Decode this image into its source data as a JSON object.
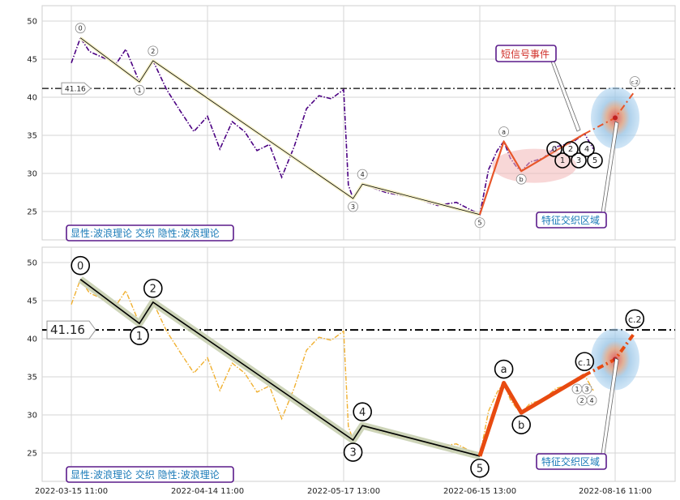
{
  "chart_data": {
    "type": "line",
    "x_ticks": [
      "2022-03-15 11:00",
      "2022-04-14 11:00",
      "2022-05-17 13:00",
      "2022-06-15 13:00",
      "2022-08-16 11:00"
    ],
    "y_ticks": [
      25,
      30,
      35,
      40,
      45,
      50
    ],
    "ylim": [
      21,
      52
    ],
    "grid": true,
    "ref_line": {
      "value": 41.16,
      "label": "41.16"
    },
    "panels": [
      {
        "id": "top",
        "price_color": "#4b0082",
        "price_style": "dashdot",
        "wave_color": "#000000",
        "wave_band_color": "#f5f0c8",
        "correction_color": "#e8562a",
        "box_text_left": "显性:波浪理论 交织 隐性:波浪理论",
        "box_signal": "短信号事件",
        "box_zone": "特征交织区域",
        "wave_points": [
          {
            "x": "2022-03-17",
            "y": 47.8,
            "label": "0"
          },
          {
            "x": "2022-03-30",
            "y": 42.0,
            "label": "1"
          },
          {
            "x": "2022-04-02",
            "y": 44.8,
            "label": "2"
          },
          {
            "x": "2022-05-19",
            "y": 26.7,
            "label": "3"
          },
          {
            "x": "2022-05-21",
            "y": 28.6,
            "label": "4"
          },
          {
            "x": "2022-06-15",
            "y": 24.6,
            "label": "5"
          }
        ],
        "correction_points": [
          {
            "x": "2022-06-15",
            "y": 24.6,
            "label": ""
          },
          {
            "x": "2022-06-26",
            "y": 34.2,
            "label": "a"
          },
          {
            "x": "2022-07-04",
            "y": 30.3,
            "label": "b"
          },
          {
            "x": "2022-08-02",
            "y": 35.2,
            "label": ""
          },
          {
            "x": "2022-08-16",
            "y": 37.3,
            "label": ""
          },
          {
            "x": "2022-08-25",
            "y": 40.8,
            "label": "c.2"
          }
        ],
        "sub_wave_labels": [
          "0",
          "1",
          "2",
          "3",
          "4",
          "5"
        ]
      },
      {
        "id": "bottom",
        "price_color": "#f0b030",
        "price_style": "dashdot",
        "wave_color": "#000000",
        "wave_band_color": "#c8cfb0",
        "correction_color": "#e84a10",
        "box_text_left": "显性:波浪理论 交织 隐性:波浪理论",
        "box_zone": "特征交织区域",
        "wave_points": [
          {
            "x": "2022-03-17",
            "y": 47.8,
            "label": "0"
          },
          {
            "x": "2022-03-30",
            "y": 42.0,
            "label": "1"
          },
          {
            "x": "2022-04-02",
            "y": 44.8,
            "label": "2"
          },
          {
            "x": "2022-05-19",
            "y": 26.7,
            "label": "3"
          },
          {
            "x": "2022-05-21",
            "y": 28.6,
            "label": "4"
          },
          {
            "x": "2022-06-15",
            "y": 24.6,
            "label": "5"
          }
        ],
        "correction_points": [
          {
            "x": "2022-06-15",
            "y": 24.6,
            "label": ""
          },
          {
            "x": "2022-06-26",
            "y": 34.2,
            "label": "a"
          },
          {
            "x": "2022-07-04",
            "y": 30.3,
            "label": "b"
          },
          {
            "x": "2022-08-02",
            "y": 35.2,
            "label": "c.1"
          },
          {
            "x": "2022-08-16",
            "y": 37.3,
            "label": ""
          },
          {
            "x": "2022-08-25",
            "y": 40.8,
            "label": "c.2"
          }
        ],
        "sub_wave_labels": [
          "1",
          "2",
          "3",
          "4"
        ]
      }
    ],
    "price_series": [
      {
        "x": "2022-03-15",
        "y": 44.5
      },
      {
        "x": "2022-03-17",
        "y": 47.8
      },
      {
        "x": "2022-03-19",
        "y": 46.0
      },
      {
        "x": "2022-03-22",
        "y": 45.2
      },
      {
        "x": "2022-03-25",
        "y": 44.5
      },
      {
        "x": "2022-03-27",
        "y": 46.3
      },
      {
        "x": "2022-03-30",
        "y": 42.0
      },
      {
        "x": "2022-04-02",
        "y": 44.8
      },
      {
        "x": "2022-04-05",
        "y": 41.0
      },
      {
        "x": "2022-04-08",
        "y": 38.2
      },
      {
        "x": "2022-04-11",
        "y": 35.5
      },
      {
        "x": "2022-04-14",
        "y": 37.5
      },
      {
        "x": "2022-04-17",
        "y": 33.2
      },
      {
        "x": "2022-04-20",
        "y": 36.8
      },
      {
        "x": "2022-04-23",
        "y": 35.5
      },
      {
        "x": "2022-04-26",
        "y": 33.0
      },
      {
        "x": "2022-04-29",
        "y": 33.8
      },
      {
        "x": "2022-05-02",
        "y": 29.5
      },
      {
        "x": "2022-05-05",
        "y": 33.5
      },
      {
        "x": "2022-05-08",
        "y": 38.5
      },
      {
        "x": "2022-05-11",
        "y": 40.2
      },
      {
        "x": "2022-05-14",
        "y": 39.8
      },
      {
        "x": "2022-05-17",
        "y": 41.0
      },
      {
        "x": "2022-05-18",
        "y": 28.5
      },
      {
        "x": "2022-05-19",
        "y": 26.7
      },
      {
        "x": "2022-05-21",
        "y": 28.6
      },
      {
        "x": "2022-05-26",
        "y": 27.5
      },
      {
        "x": "2022-06-01",
        "y": 26.8
      },
      {
        "x": "2022-06-06",
        "y": 25.8
      },
      {
        "x": "2022-06-10",
        "y": 26.2
      },
      {
        "x": "2022-06-15",
        "y": 24.6
      },
      {
        "x": "2022-06-19",
        "y": 30.5
      },
      {
        "x": "2022-06-23",
        "y": 33.0
      },
      {
        "x": "2022-06-26",
        "y": 34.2
      },
      {
        "x": "2022-06-29",
        "y": 32.0
      },
      {
        "x": "2022-07-02",
        "y": 30.8
      },
      {
        "x": "2022-07-04",
        "y": 30.3
      },
      {
        "x": "2022-07-08",
        "y": 31.5
      },
      {
        "x": "2022-07-14",
        "y": 32.0
      },
      {
        "x": "2022-07-20",
        "y": 33.5
      },
      {
        "x": "2022-07-27",
        "y": 34.0
      },
      {
        "x": "2022-08-02",
        "y": 35.2
      },
      {
        "x": "2022-08-06",
        "y": 33.2
      }
    ]
  }
}
